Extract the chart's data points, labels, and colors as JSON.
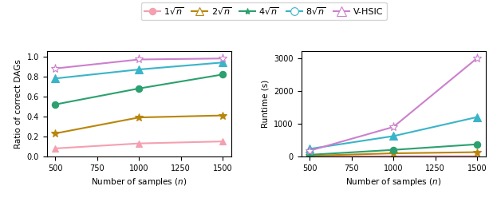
{
  "x": [
    500,
    1000,
    1500
  ],
  "series": {
    "1sqrt": {
      "label": "$1\\sqrt{n}$",
      "color": "#f4a0b0",
      "accuracy": [
        0.08,
        0.13,
        0.15
      ],
      "runtime": [
        5,
        8,
        12
      ],
      "plot_marker": "^",
      "plot_mfc": "#f4a0b0",
      "plot_mec": "#f4a0b0",
      "legend_marker": "o",
      "legend_mfc": "#f4a0b0",
      "legend_mec": "#f4a0b0"
    },
    "2sqrt": {
      "label": "$2\\sqrt{n}$",
      "color": "#b8860b",
      "accuracy": [
        0.23,
        0.39,
        0.41
      ],
      "runtime": [
        20,
        95,
        130
      ],
      "plot_marker": "*",
      "plot_mfc": "#b8860b",
      "plot_mec": "#b8860b",
      "legend_marker": "^",
      "legend_mfc": "white",
      "legend_mec": "#b8860b"
    },
    "4sqrt": {
      "label": "$4\\sqrt{n}$",
      "color": "#2ca06e",
      "accuracy": [
        0.52,
        0.68,
        0.82
      ],
      "runtime": [
        50,
        200,
        370
      ],
      "plot_marker": "o",
      "plot_mfc": "#2ca06e",
      "plot_mec": "#2ca06e",
      "legend_marker": "*",
      "legend_mfc": "#2ca06e",
      "legend_mec": "#2ca06e"
    },
    "8sqrt": {
      "label": "$8\\sqrt{n}$",
      "color": "#3ab4c8",
      "accuracy": [
        0.78,
        0.87,
        0.94
      ],
      "runtime": [
        230,
        620,
        1200
      ],
      "plot_marker": "^",
      "plot_mfc": "#3ab4c8",
      "plot_mec": "#3ab4c8",
      "legend_marker": "o",
      "legend_mfc": "white",
      "legend_mec": "#3ab4c8"
    },
    "vhsic": {
      "label": "V-HSIC",
      "color": "#cc80cc",
      "accuracy": [
        0.88,
        0.97,
        0.98
      ],
      "runtime": [
        175,
        900,
        3000
      ],
      "plot_marker": "*",
      "plot_mfc": "white",
      "plot_mec": "#cc80cc",
      "legend_marker": "^",
      "legend_mfc": "white",
      "legend_mec": "#cc80cc"
    }
  },
  "left_ylabel": "Ratio of correct DAGs",
  "right_ylabel": "Runtime (s)",
  "xlabel": "Number of samples $(n)$",
  "left_ylim": [
    0,
    1.05
  ],
  "right_ylim": [
    0,
    3200
  ],
  "xticks": [
    500,
    750,
    1000,
    1250,
    1500
  ],
  "right_yticks": [
    0,
    1000,
    2000,
    3000
  ],
  "left_yticks": [
    0.0,
    0.2,
    0.4,
    0.6,
    0.8,
    1.0
  ]
}
